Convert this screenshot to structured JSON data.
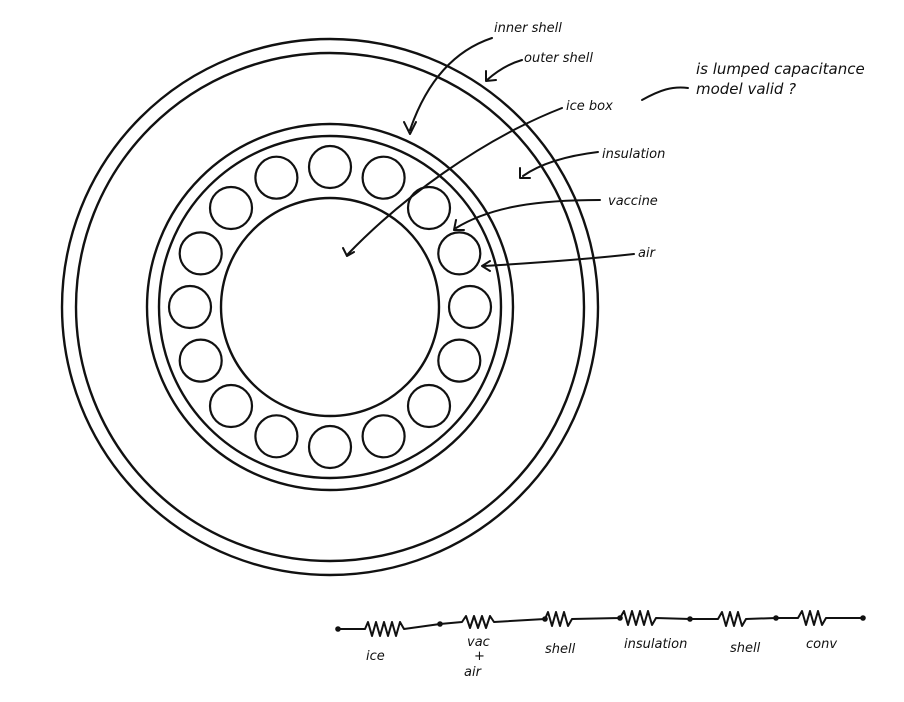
{
  "labels": {
    "inner_shell": "inner shell",
    "outer_shell": "outer shell",
    "ice_box": "ice box",
    "question_line1": "is lumped capacitance",
    "question_line2": "model valid ?",
    "insulation": "insulation",
    "vaccine": "vaccine",
    "air": "air"
  },
  "circuit": {
    "nodes": [
      "ice",
      "vac",
      "+",
      "air",
      "shell",
      "insulation",
      "shell",
      "conv"
    ]
  },
  "colors": {
    "ink": "#111111",
    "background": "#ffffff"
  }
}
